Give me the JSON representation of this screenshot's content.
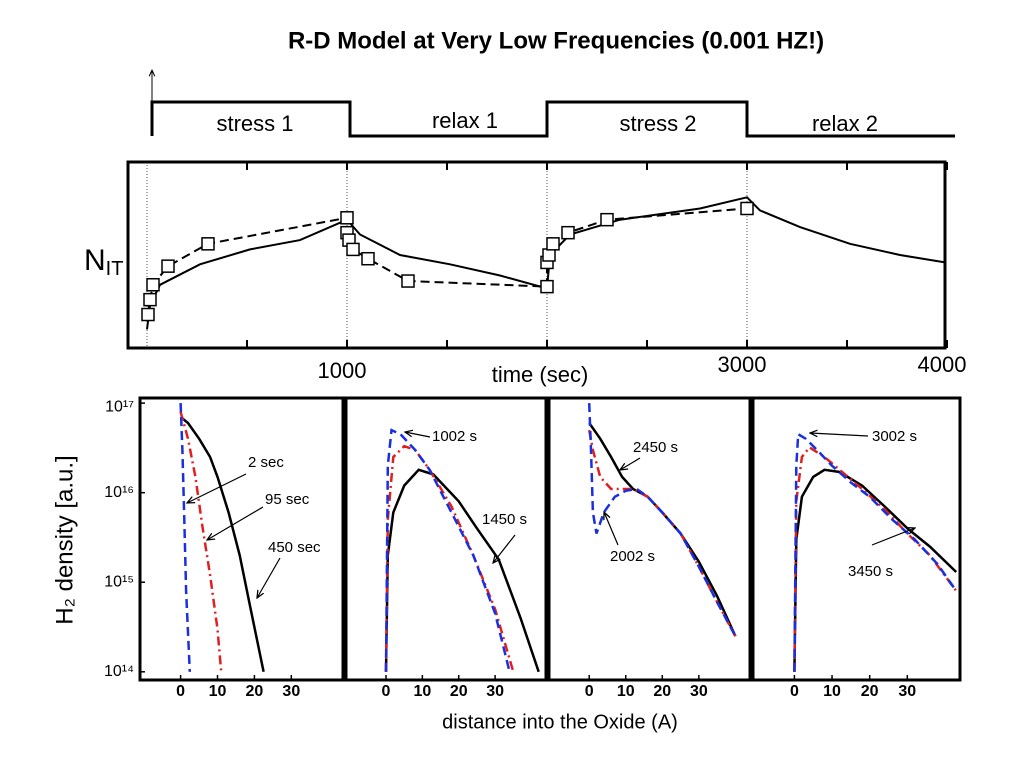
{
  "title": "R-D Model at Very Low Frequencies (0.001 HZ!)",
  "phases": [
    "stress 1",
    "relax 1",
    "stress 2",
    "relax 2"
  ],
  "panel_xlabel": "distance into the Oxide (A)",
  "panel_ylabel": "H₂ density [a.u.]",
  "chart_data": [
    {
      "type": "line",
      "xlabel": "time (sec)",
      "ylabel": "N",
      "ylabel_sub": "IT",
      "xlim": [
        -95,
        3990
      ],
      "xticks": [
        1000,
        3000,
        4000
      ],
      "xticks_minor": [
        500,
        1500,
        2000,
        2500,
        3500
      ],
      "vlines": [
        0,
        1000,
        2000,
        3000
      ],
      "ylim": [
        0,
        100
      ],
      "series": [
        {
          "color": "#000000",
          "dash": "solid",
          "x": [
            0,
            15,
            65,
            265,
            515,
            765,
            1000,
            1065,
            1265,
            1515,
            1765,
            2000,
            2015,
            2115,
            2365,
            2765,
            3000,
            3065,
            3265,
            3515,
            3765,
            3990
          ],
          "values": [
            10,
            23,
            34,
            45,
            53,
            58,
            69,
            61,
            50,
            45,
            39,
            32,
            50,
            61,
            69,
            75,
            81,
            74,
            65,
            56,
            50,
            46
          ]
        },
        {
          "color": "#000000",
          "dash": "dashed",
          "marker": "square",
          "x": [
            5,
            15,
            30,
            105,
            305,
            1000,
            1000,
            1010,
            1030,
            1105,
            1305,
            2000,
            2000,
            2010,
            2030,
            2105,
            2300,
            3000
          ],
          "values": [
            18,
            26,
            34,
            44,
            56,
            70,
            62,
            58,
            53,
            48,
            36,
            33,
            46,
            50,
            56,
            62,
            69,
            75
          ]
        }
      ]
    },
    {
      "type": "line",
      "log_y": true,
      "xlim": [
        -11,
        44
      ],
      "ylim": [
        81000000000000.0,
        1.14e+17
      ],
      "xticks": [
        0,
        10,
        20,
        30
      ],
      "yticks": [
        {
          "value": 1e+17,
          "label": "10¹⁷"
        },
        {
          "value": 1e+16,
          "label": "10¹⁶"
        },
        {
          "value": 1000000000000000.0,
          "label": "10¹⁵"
        },
        {
          "value": 100000000000000.0,
          "label": "10¹⁴"
        }
      ],
      "annotations": [
        "2 sec",
        "95 sec",
        "450 sec"
      ],
      "series": [
        {
          "color": "#000000",
          "dash": "solid",
          "x": [
            0,
            2,
            5,
            8,
            10,
            13,
            16,
            19,
            22.5
          ],
          "values": [
            7e+16,
            6e+16,
            4e+16,
            2.5e+16,
            1.5e+16,
            6000000000000000.0,
            2000000000000000.0,
            500000000000000.0,
            100000000000000.0
          ]
        },
        {
          "color": "#e02020",
          "dash": "dashdot",
          "x": [
            0,
            2,
            4,
            6,
            8,
            10,
            11
          ],
          "values": [
            8e+16,
            4e+16,
            1.5e+16,
            4000000000000000.0,
            1200000000000000.0,
            300000000000000.0,
            100000000000000.0
          ]
        },
        {
          "color": "#1a2fe0",
          "dash": "dashed",
          "x": [
            0,
            0.5,
            1,
            1.5,
            2.5
          ],
          "values": [
            1e+17,
            3e+16,
            5000000000000000.0,
            800000000000000.0,
            100000000000000.0
          ]
        }
      ]
    },
    {
      "type": "line",
      "log_y": true,
      "xlim": [
        -11,
        44
      ],
      "ylim": [
        81000000000000.0,
        1.14e+17
      ],
      "xticks": [
        0,
        10,
        20,
        30
      ],
      "annotations": [
        "1002 s",
        "1450 s"
      ],
      "series": [
        {
          "color": "#000000",
          "dash": "solid",
          "x": [
            0,
            0.5,
            2,
            5,
            9,
            13,
            20,
            25,
            31,
            37,
            42
          ],
          "values": [
            100000000000000.0,
            2000000000000000.0,
            6000000000000000.0,
            1.2e+16,
            1.8e+16,
            1.6e+16,
            8000000000000000.0,
            4000000000000000.0,
            1800000000000000.0,
            400000000000000.0,
            100000000000000.0
          ]
        },
        {
          "color": "#e02020",
          "dash": "dashdot",
          "x": [
            0,
            0.5,
            2,
            5,
            8,
            12,
            18,
            24,
            30,
            35
          ],
          "values": [
            100000000000000.0,
            5000000000000000.0,
            2.5e+16,
            3.3e+16,
            3e+16,
            1.8e+16,
            7000000000000000.0,
            2000000000000000.0,
            500000000000000.0,
            100000000000000.0
          ]
        },
        {
          "color": "#1a2fe0",
          "dash": "dashed",
          "x": [
            0,
            0.5,
            1.5,
            4,
            8,
            12,
            18,
            24,
            30,
            34
          ],
          "values": [
            100000000000000.0,
            2e+16,
            5e+16,
            4.5e+16,
            3e+16,
            1.8e+16,
            6000000000000000.0,
            2000000000000000.0,
            450000000000000.0,
            100000000000000.0
          ]
        }
      ]
    },
    {
      "type": "line",
      "log_y": true,
      "xlim": [
        -11,
        44
      ],
      "ylim": [
        81000000000000.0,
        1.14e+17
      ],
      "xticks": [
        0,
        10,
        20,
        30
      ],
      "annotations": [
        "2450 s",
        "2002 s"
      ],
      "series": [
        {
          "color": "#000000",
          "dash": "solid",
          "x": [
            0,
            3,
            6,
            9,
            12,
            16,
            20,
            25,
            30,
            35,
            40
          ],
          "values": [
            6e+16,
            4e+16,
            2.5e+16,
            1.5e+16,
            1.1e+16,
            9000000000000000.0,
            6000000000000000.0,
            3500000000000000.0,
            1700000000000000.0,
            700000000000000.0,
            250000000000000.0
          ]
        },
        {
          "color": "#e02020",
          "dash": "dashdot",
          "x": [
            0,
            1,
            3,
            6,
            9,
            12,
            16,
            20,
            25,
            30,
            35,
            40
          ],
          "values": [
            5e+16,
            3e+16,
            1.5e+16,
            1.1e+16,
            1.1e+16,
            1.1e+16,
            9000000000000000.0,
            6000000000000000.0,
            3500000000000000.0,
            1500000000000000.0,
            600000000000000.0,
            250000000000000.0
          ]
        },
        {
          "color": "#1a2fe0",
          "dash": "dashed",
          "x": [
            0,
            0.5,
            1,
            2,
            4,
            7,
            10,
            13,
            16,
            20,
            25,
            30,
            35,
            40
          ],
          "values": [
            1e+17,
            3e+16,
            6000000000000000.0,
            3500000000000000.0,
            6000000000000000.0,
            9000000000000000.0,
            1.05e+16,
            1.1e+16,
            9000000000000000.0,
            6000000000000000.0,
            3500000000000000.0,
            1500000000000000.0,
            600000000000000.0,
            250000000000000.0
          ]
        }
      ]
    },
    {
      "type": "line",
      "log_y": true,
      "xlim": [
        -11,
        44
      ],
      "ylim": [
        81000000000000.0,
        1.14e+17
      ],
      "xticks": [
        0,
        10,
        20,
        30
      ],
      "annotations": [
        "3002 s",
        "3450 s"
      ],
      "series": [
        {
          "color": "#000000",
          "dash": "solid",
          "x": [
            0,
            0.5,
            2,
            5,
            8,
            12,
            18,
            24,
            30,
            36,
            43
          ],
          "values": [
            100000000000000.0,
            3000000000000000.0,
            9000000000000000.0,
            1.5e+16,
            1.8e+16,
            1.7e+16,
            1.2e+16,
            7000000000000000.0,
            4000000000000000.0,
            2500000000000000.0,
            1300000000000000.0
          ]
        },
        {
          "color": "#e02020",
          "dash": "dashdot",
          "x": [
            0,
            0.5,
            2,
            4,
            8,
            12,
            18,
            24,
            30,
            36,
            43
          ],
          "values": [
            100000000000000.0,
            8000000000000000.0,
            2.5e+16,
            3.2e+16,
            2.5e+16,
            1.8e+16,
            1.1e+16,
            6500000000000000.0,
            3500000000000000.0,
            2000000000000000.0,
            800000000000000.0
          ]
        },
        {
          "color": "#1a2fe0",
          "dash": "dashed",
          "x": [
            0,
            0.5,
            1,
            3,
            6,
            10,
            15,
            20,
            26,
            32,
            38,
            43
          ],
          "values": [
            100000000000000.0,
            2e+16,
            4.5e+16,
            4e+16,
            3e+16,
            2e+16,
            1.3e+16,
            9000000000000000.0,
            5000000000000000.0,
            3000000000000000.0,
            1600000000000000.0,
            800000000000000.0
          ]
        }
      ]
    }
  ]
}
